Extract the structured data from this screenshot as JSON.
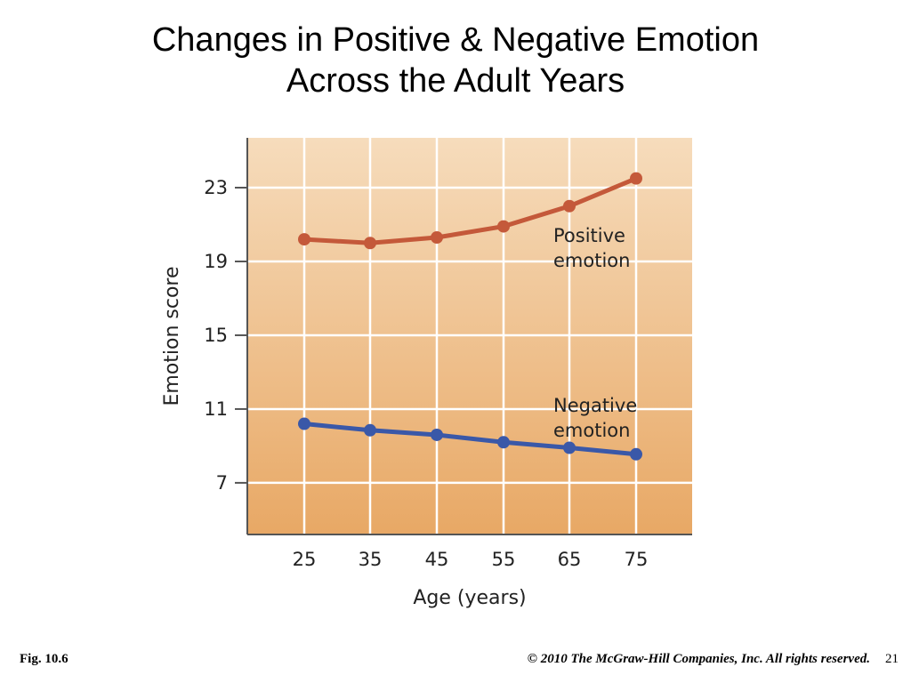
{
  "slide": {
    "title_line1": "Changes in Positive & Negative Emotion",
    "title_line2": "Across the Adult Years",
    "fig_label": "Fig. 10.6",
    "copyright": "© 2010 The McGraw-Hill Companies, Inc. All rights reserved.",
    "page_number": "21"
  },
  "chart_data": {
    "type": "line",
    "title": "",
    "xlabel": "Age (years)",
    "ylabel": "Emotion score",
    "x": [
      25,
      35,
      45,
      55,
      65,
      75
    ],
    "y_ticks": [
      7,
      11,
      15,
      19,
      23
    ],
    "ylim": [
      4.2,
      25.7
    ],
    "grid": true,
    "series": [
      {
        "name": "Positive emotion",
        "label_lines": [
          "Positive",
          "emotion"
        ],
        "color": "#c4593a",
        "values": [
          20.2,
          20.0,
          20.3,
          20.9,
          22.0,
          23.5
        ]
      },
      {
        "name": "Negative emotion",
        "label_lines": [
          "Negative",
          "emotion"
        ],
        "color": "#3a58a8",
        "values": [
          10.2,
          9.85,
          9.6,
          9.2,
          8.9,
          8.55
        ]
      }
    ],
    "colors": {
      "background_top": "#f6dcbc",
      "background_bottom": "#e8a865",
      "grid": "#ffffff",
      "axis": "#555555",
      "text": "#222222"
    }
  }
}
